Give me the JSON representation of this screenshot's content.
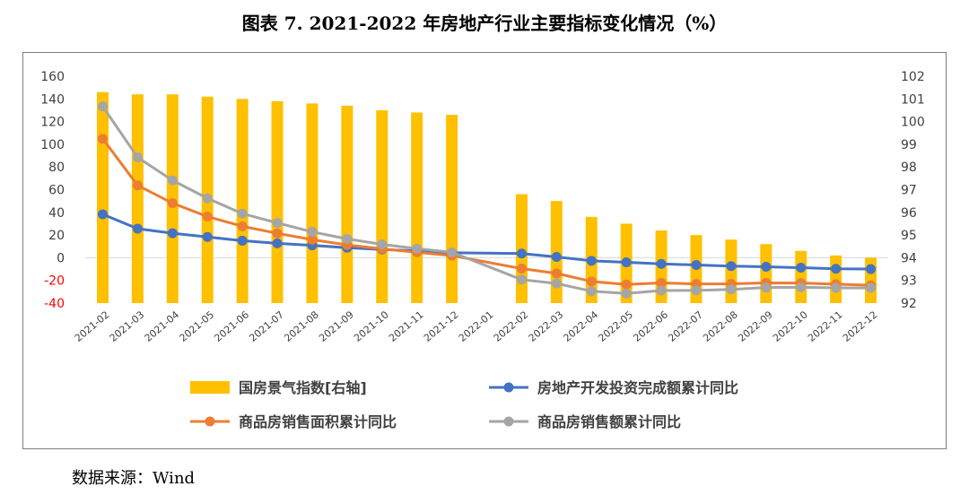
{
  "chart_data": {
    "type": "bar+line",
    "title": "图表 7. 2021-2022 年房地产行业主要指标变化情况（%）",
    "categories": [
      "2021-02",
      "2021-03",
      "2021-04",
      "2021-05",
      "2021-06",
      "2021-07",
      "2021-08",
      "2021-09",
      "2021-10",
      "2021-11",
      "2021-12",
      "2022-01",
      "2022-02",
      "2022-03",
      "2022-04",
      "2022-05",
      "2022-06",
      "2022-07",
      "2022-08",
      "2022-09",
      "2022-10",
      "2022-11",
      "2022-12"
    ],
    "left_axis": {
      "ylim": [
        -40,
        160
      ],
      "ticks": [
        160,
        140,
        120,
        100,
        80,
        60,
        40,
        20,
        0,
        -20,
        -40
      ],
      "negative_color": "#ff0000"
    },
    "right_axis": {
      "ylim": [
        92,
        102
      ],
      "ticks": [
        102,
        101,
        100,
        99,
        98,
        97,
        96,
        95,
        94,
        93,
        92
      ]
    },
    "bar_series": {
      "name": "国房景气指数[右轴]",
      "axis": "right",
      "color": "#ffc000",
      "values": [
        101.3,
        101.2,
        101.2,
        101.1,
        101.0,
        100.9,
        100.8,
        100.7,
        100.5,
        100.4,
        100.3,
        null,
        96.8,
        96.5,
        95.8,
        95.5,
        95.2,
        95.0,
        94.8,
        94.6,
        94.3,
        94.1,
        94.0
      ]
    },
    "line_series": [
      {
        "name": "房地产开发投资完成额累计同比",
        "axis": "left",
        "color": "#4472c4",
        "values": [
          38.3,
          25.6,
          21.6,
          18.3,
          15.0,
          12.7,
          10.9,
          8.8,
          7.2,
          6.0,
          4.4,
          null,
          3.7,
          0.7,
          -2.7,
          -4.0,
          -5.4,
          -6.4,
          -7.4,
          -8.0,
          -8.8,
          -9.8,
          -10.0
        ]
      },
      {
        "name": "商品房销售面积累计同比",
        "axis": "left",
        "color": "#ed7d31",
        "values": [
          104.9,
          63.8,
          48.1,
          36.3,
          27.7,
          21.5,
          15.9,
          11.3,
          7.8,
          4.8,
          1.9,
          null,
          -9.6,
          -13.8,
          -20.9,
          -23.6,
          -22.2,
          -23.1,
          -23.0,
          -22.2,
          -22.3,
          -23.3,
          -24.3
        ]
      },
      {
        "name": "商品房销售额累计同比",
        "axis": "left",
        "color": "#a5a5a5",
        "values": [
          133.4,
          88.5,
          68.2,
          52.4,
          38.9,
          30.7,
          22.8,
          16.6,
          11.8,
          8.0,
          4.8,
          null,
          -19.3,
          -22.7,
          -29.5,
          -31.5,
          -28.9,
          -28.8,
          -27.9,
          -26.3,
          -26.1,
          -26.6,
          -26.7
        ]
      }
    ],
    "legend": [
      "国房景气指数[右轴]",
      "房地产开发投资完成额累计同比",
      "商品房销售面积累计同比",
      "商品房销售额累计同比"
    ]
  },
  "source": "数据来源：Wind"
}
